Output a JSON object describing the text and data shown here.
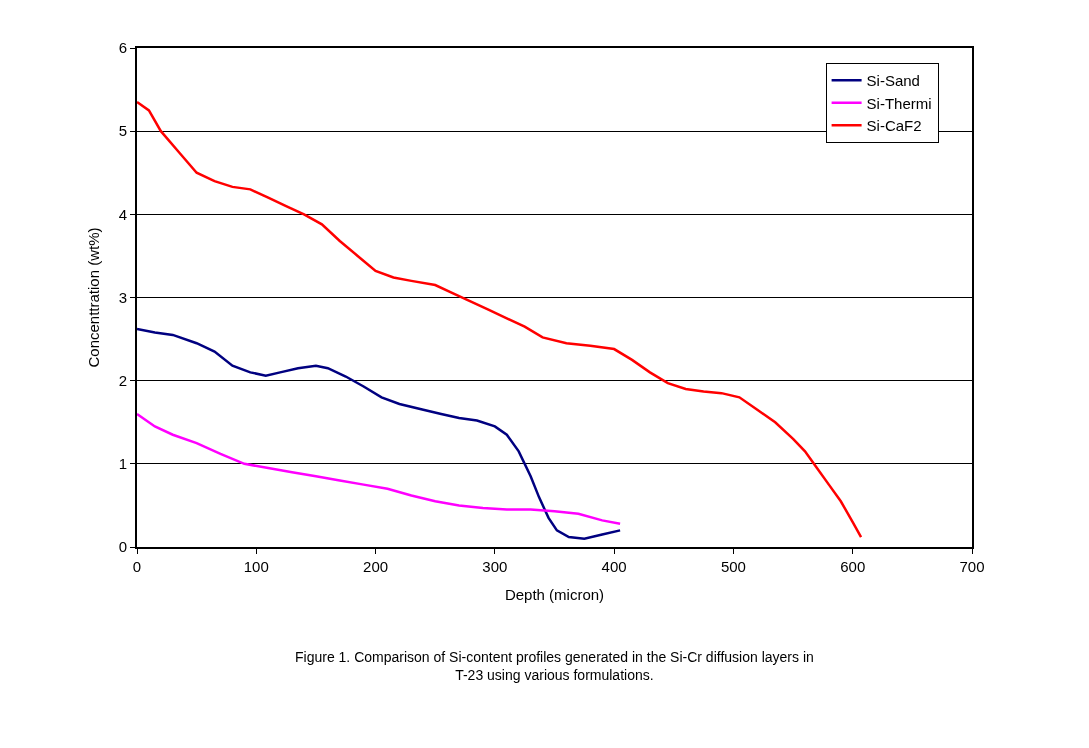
{
  "chart_data": {
    "type": "line",
    "xlabel": "Depth (micron)",
    "ylabel": "Concenttration (wt%)",
    "xlim": [
      0,
      700
    ],
    "xticks": [
      0,
      100,
      200,
      300,
      400,
      500,
      600,
      700
    ],
    "ylim": [
      0,
      6
    ],
    "yticks": [
      0,
      1,
      2,
      3,
      4,
      5,
      6
    ],
    "grid": "y",
    "legend": "top right",
    "marker": "none",
    "line_style": "solid",
    "annotations": [
      "Figure 1. Comparison of Si-content profiles generated in the Si-Cr diffusion layers in T-23 using various formulations."
    ],
    "series": [
      {
        "name": "Si-Sand",
        "color": "#000080",
        "x": [
          0,
          15,
          30,
          50,
          65,
          80,
          95,
          108,
          120,
          135,
          150,
          160,
          175,
          190,
          205,
          220,
          240,
          255,
          270,
          285,
          300,
          310,
          320,
          330,
          337,
          345,
          352,
          362,
          375,
          390,
          405
        ],
        "values": [
          2.62,
          2.58,
          2.55,
          2.45,
          2.35,
          2.18,
          2.1,
          2.06,
          2.1,
          2.15,
          2.18,
          2.15,
          2.05,
          1.93,
          1.8,
          1.72,
          1.65,
          1.6,
          1.55,
          1.52,
          1.45,
          1.35,
          1.15,
          0.85,
          0.6,
          0.35,
          0.2,
          0.12,
          0.1,
          0.15,
          0.2
        ]
      },
      {
        "name": "Si-Thermi",
        "color": "#ff00ff",
        "x": [
          0,
          15,
          30,
          50,
          70,
          90,
          110,
          130,
          150,
          170,
          190,
          210,
          230,
          250,
          270,
          290,
          310,
          330,
          350,
          370,
          390,
          405
        ],
        "values": [
          1.6,
          1.45,
          1.35,
          1.25,
          1.12,
          1.0,
          0.95,
          0.9,
          0.85,
          0.8,
          0.75,
          0.7,
          0.62,
          0.55,
          0.5,
          0.47,
          0.45,
          0.45,
          0.43,
          0.4,
          0.32,
          0.28
        ]
      },
      {
        "name": "Si-CaF2",
        "color": "#ff0000",
        "x": [
          0,
          10,
          20,
          35,
          50,
          65,
          80,
          95,
          110,
          125,
          140,
          155,
          170,
          185,
          200,
          215,
          230,
          250,
          265,
          280,
          295,
          310,
          325,
          340,
          360,
          380,
          400,
          415,
          430,
          445,
          460,
          475,
          490,
          505,
          520,
          535,
          550,
          560,
          570,
          580,
          590,
          600,
          607
        ],
        "values": [
          5.35,
          5.25,
          5.0,
          4.75,
          4.5,
          4.4,
          4.33,
          4.3,
          4.2,
          4.1,
          4.0,
          3.88,
          3.68,
          3.5,
          3.32,
          3.24,
          3.2,
          3.15,
          3.05,
          2.95,
          2.85,
          2.75,
          2.65,
          2.52,
          2.45,
          2.42,
          2.38,
          2.25,
          2.1,
          1.97,
          1.9,
          1.87,
          1.85,
          1.8,
          1.65,
          1.5,
          1.3,
          1.15,
          0.95,
          0.75,
          0.55,
          0.3,
          0.12
        ]
      }
    ]
  }
}
